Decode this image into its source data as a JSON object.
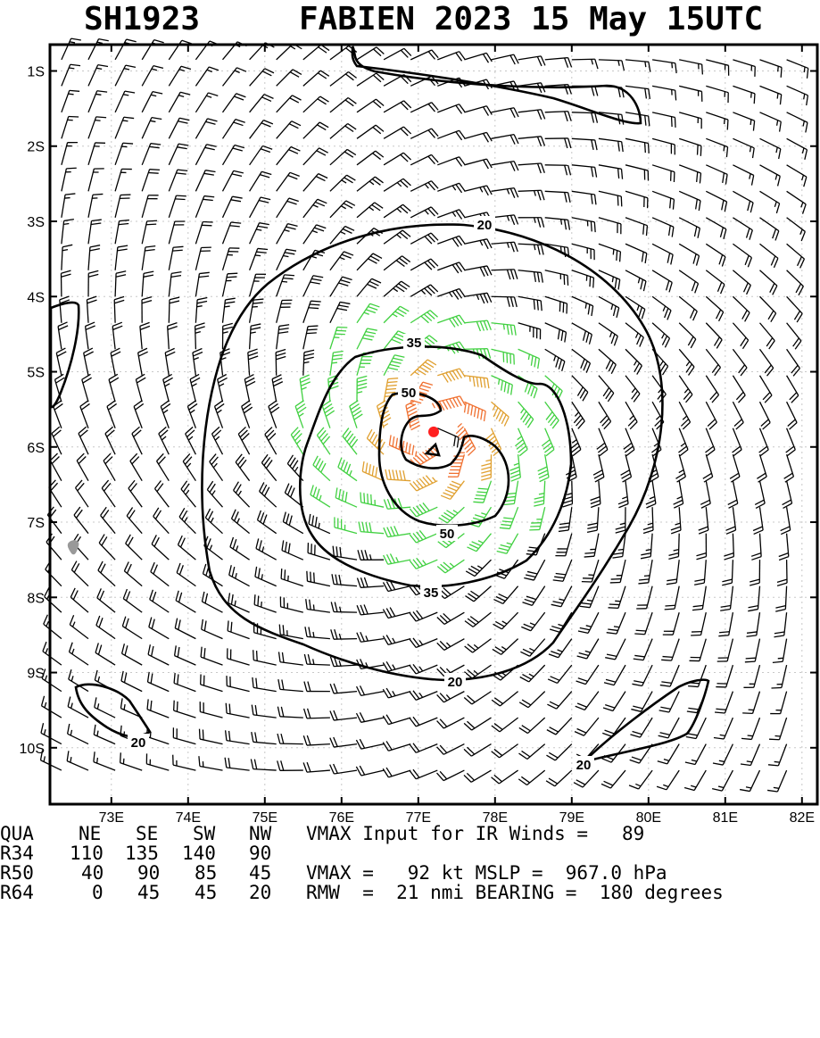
{
  "title": {
    "storm_id": "SH1923",
    "main": "FABIEN 2023 15 May 15UTC"
  },
  "chart_data": {
    "type": "wind-barb-map",
    "x_ticks": [
      "73E",
      "74E",
      "75E",
      "76E",
      "77E",
      "78E",
      "79E",
      "80E",
      "81E",
      "82E"
    ],
    "y_ticks": [
      "1S",
      "2S",
      "3S",
      "4S",
      "5S",
      "6S",
      "7S",
      "8S",
      "9S",
      "10S"
    ],
    "xlim": [
      72.2,
      82.2
    ],
    "ylim": [
      -10.75,
      -0.65
    ],
    "contour_levels_kt": [
      20,
      35,
      50
    ],
    "contour_labels": [
      "20",
      "35",
      "50",
      "50",
      "35",
      "20",
      "20",
      "20"
    ],
    "center": {
      "lon": 77.2,
      "lat": -5.8
    },
    "colors": {
      "below_34": "#000000",
      "gale_34_49": "#40d040",
      "storm_50_63": "#e0a030",
      "hurricane_64_plus": "#f07030",
      "center": "#ff2020"
    }
  },
  "stats": {
    "headers": [
      "QUA",
      "NE",
      "SE",
      "SW",
      "NW"
    ],
    "rows": [
      {
        "label": "R34",
        "values": [
          "110",
          "135",
          "140",
          "90"
        ]
      },
      {
        "label": "R50",
        "values": [
          "40",
          "90",
          "85",
          "45"
        ]
      },
      {
        "label": "R64",
        "values": [
          "0",
          "45",
          "45",
          "20"
        ]
      }
    ],
    "line1": "VMAX Input for IR Winds =   89",
    "line2": "VMAX =   92 kt MSLP =  967.0 hPa",
    "line3": "RMW  =  21 nmi BEARING =  180 degrees"
  }
}
